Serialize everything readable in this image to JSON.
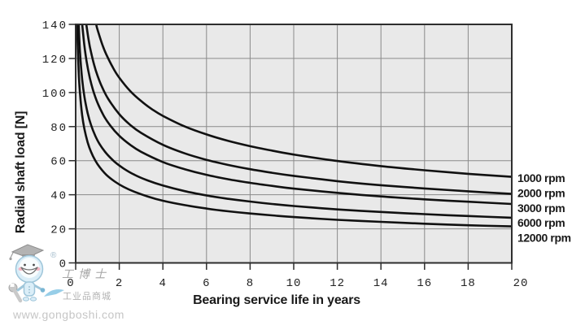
{
  "chart_data": {
    "type": "line",
    "title": "",
    "xlabel": "Bearing service life in years",
    "ylabel": "Radial shaft load [N]",
    "xlim": [
      0,
      20
    ],
    "ylim": [
      0,
      140
    ],
    "x_ticks": [
      0,
      2,
      4,
      6,
      8,
      10,
      12,
      14,
      16,
      18,
      20
    ],
    "y_ticks": [
      0,
      20,
      40,
      60,
      80,
      100,
      120,
      140
    ],
    "grid": true,
    "legend_position": "right-outside",
    "plot_bg": "#e9e9e9",
    "grid_color": "#8a8a8a",
    "axis_color": "#2e2e2e",
    "curve_color": "#111111",
    "series": [
      {
        "name": "1000 rpm",
        "points": [
          [
            0.94,
            140
          ],
          [
            1,
            137
          ],
          [
            1.2,
            128.9
          ],
          [
            1.4,
            122.5
          ],
          [
            1.7,
            114.8
          ],
          [
            2,
            108.7
          ],
          [
            2.5,
            100.9
          ],
          [
            3,
            95
          ],
          [
            3.5,
            90.2
          ],
          [
            4,
            86.3
          ],
          [
            5,
            80.1
          ],
          [
            6,
            75.4
          ],
          [
            7,
            71.6
          ],
          [
            8,
            68.5
          ],
          [
            9,
            65.9
          ],
          [
            10,
            63.6
          ],
          [
            12,
            59.8
          ],
          [
            14,
            56.8
          ],
          [
            16,
            54.4
          ],
          [
            18,
            52.3
          ],
          [
            20,
            50.5
          ]
        ]
      },
      {
        "name": "2000 rpm",
        "points": [
          [
            0.49,
            140
          ],
          [
            0.6,
            130.4
          ],
          [
            0.7,
            123.9
          ],
          [
            0.85,
            116.1
          ],
          [
            1,
            110
          ],
          [
            1.2,
            103.5
          ],
          [
            1.5,
            96.1
          ],
          [
            2,
            87.3
          ],
          [
            2.5,
            81
          ],
          [
            3,
            76.3
          ],
          [
            4,
            69.3
          ],
          [
            5,
            64.3
          ],
          [
            6,
            60.5
          ],
          [
            7,
            57.5
          ],
          [
            8,
            55
          ],
          [
            9,
            52.9
          ],
          [
            10,
            51.1
          ],
          [
            12,
            48
          ],
          [
            14,
            45.6
          ],
          [
            16,
            43.7
          ],
          [
            18,
            42
          ],
          [
            20,
            40.5
          ]
        ]
      },
      {
        "name": "3000 rpm",
        "points": [
          [
            0.3,
            140
          ],
          [
            0.4,
            127.6
          ],
          [
            0.5,
            118.4
          ],
          [
            0.65,
            108.5
          ],
          [
            0.8,
            101.3
          ],
          [
            1,
            94
          ],
          [
            1.3,
            86.1
          ],
          [
            1.6,
            80.4
          ],
          [
            2,
            74.6
          ],
          [
            2.5,
            69.3
          ],
          [
            3,
            65.2
          ],
          [
            4,
            59.2
          ],
          [
            5,
            55
          ],
          [
            6,
            51.7
          ],
          [
            7,
            49.1
          ],
          [
            8,
            47
          ],
          [
            9,
            45.2
          ],
          [
            10,
            43.6
          ],
          [
            12,
            41.1
          ],
          [
            14,
            39
          ],
          [
            16,
            37.3
          ],
          [
            18,
            35.9
          ],
          [
            20,
            34.6
          ]
        ]
      },
      {
        "name": "6000 rpm",
        "points": [
          [
            0.14,
            140
          ],
          [
            0.2,
            123.1
          ],
          [
            0.3,
            107.6
          ],
          [
            0.4,
            97.7
          ],
          [
            0.55,
            87.9
          ],
          [
            0.7,
            81.1
          ],
          [
            0.9,
            74.6
          ],
          [
            1.1,
            69.7
          ],
          [
            1.4,
            64.4
          ],
          [
            1.8,
            59.2
          ],
          [
            2.2,
            55.4
          ],
          [
            2.7,
            51.7
          ],
          [
            3.3,
            48.4
          ],
          [
            4,
            45.4
          ],
          [
            5,
            42.1
          ],
          [
            6,
            39.6
          ],
          [
            7,
            37.6
          ],
          [
            8,
            36
          ],
          [
            9,
            34.6
          ],
          [
            10,
            33.4
          ],
          [
            12,
            31.4
          ],
          [
            14,
            29.9
          ],
          [
            16,
            28.6
          ],
          [
            18,
            27.5
          ],
          [
            20,
            26.5
          ]
        ]
      },
      {
        "name": "12000 rpm",
        "points": [
          [
            0.07,
            140
          ],
          [
            0.1,
            124.9
          ],
          [
            0.15,
            109.2
          ],
          [
            0.2,
            99.2
          ],
          [
            0.3,
            86.6
          ],
          [
            0.4,
            78.7
          ],
          [
            0.55,
            70.8
          ],
          [
            0.7,
            65.3
          ],
          [
            0.9,
            60.1
          ],
          [
            1.1,
            56.2
          ],
          [
            1.4,
            51.8
          ],
          [
            1.8,
            47.7
          ],
          [
            2.2,
            44.6
          ],
          [
            2.7,
            41.7
          ],
          [
            3.3,
            39
          ],
          [
            4,
            36.5
          ],
          [
            5,
            33.9
          ],
          [
            6,
            31.9
          ],
          [
            7,
            30.3
          ],
          [
            8,
            29
          ],
          [
            9,
            27.9
          ],
          [
            10,
            26.9
          ],
          [
            12,
            25.3
          ],
          [
            14,
            24.1
          ],
          [
            16,
            23
          ],
          [
            18,
            22.1
          ],
          [
            20,
            21.4
          ]
        ]
      }
    ]
  },
  "watermark": {
    "registered_mark": "®",
    "brand_script": "工博士",
    "brand_sub": "工业品商城",
    "url": "www.gongboshi.com",
    "brand_blue": "#85c6e4",
    "text_gray": "#b2b2b2"
  }
}
